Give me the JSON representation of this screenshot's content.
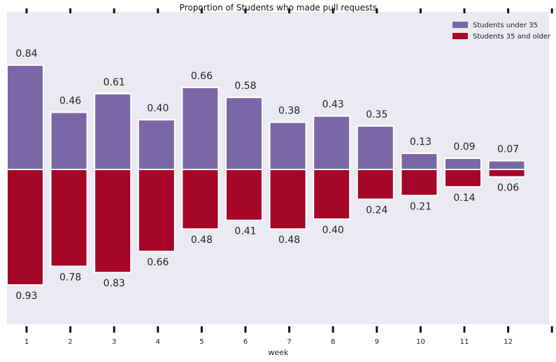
{
  "chart_data": {
    "type": "bar",
    "title": "Proportion of Students who made pull requests",
    "xlabel": "week",
    "ylabel": "",
    "categories": [
      "1",
      "2",
      "3",
      "4",
      "5",
      "6",
      "7",
      "8",
      "9",
      "10",
      "11",
      "12"
    ],
    "series": [
      {
        "name": "Students under 35",
        "color": "#7a68a6",
        "direction": "up",
        "values": [
          0.84,
          0.46,
          0.61,
          0.4,
          0.66,
          0.58,
          0.38,
          0.43,
          0.35,
          0.13,
          0.09,
          0.07
        ],
        "labels": [
          "0.84",
          "0.46",
          "0.61",
          "0.40",
          "0.66",
          "0.58",
          "0.38",
          "0.43",
          "0.35",
          "0.13",
          "0.09",
          "0.07"
        ]
      },
      {
        "name": "Students 35 and older",
        "color": "#a60628",
        "direction": "down",
        "values": [
          0.93,
          0.78,
          0.83,
          0.66,
          0.48,
          0.41,
          0.48,
          0.4,
          0.24,
          0.21,
          0.14,
          0.06
        ],
        "labels": [
          "0.93",
          "0.78",
          "0.83",
          "0.66",
          "0.48",
          "0.41",
          "0.48",
          "0.40",
          "0.24",
          "0.21",
          "0.14",
          "0.06"
        ]
      }
    ],
    "ylim": [
      -1.2,
      1.2
    ],
    "grid": false,
    "legend": "top-right",
    "background_color": "#eaeaf2"
  }
}
